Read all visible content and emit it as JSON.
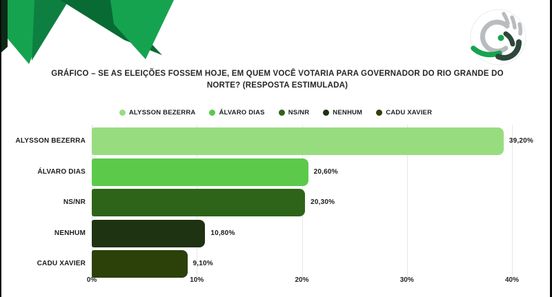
{
  "title": "GRÁFICO – SE AS ELEIÇÕES FOSSEM HOJE, EM QUEM VOCÊ VOTARIA PARA GOVERNADOR DO RIO GRANDE DO NORTE? (RESPOSTA ESTIMULADA)",
  "branding": {
    "logo_name": "research-institute-globe-logo",
    "deco_name": "green-ribbon-decoration"
  },
  "colors": {
    "background": "#ffffff",
    "frame_border": "#0a0a0a",
    "title_text": "#262626",
    "label_text": "#1c1c1c",
    "gridline": "#e7e7e7",
    "deco_bright_green": "#16a34f",
    "deco_mid_green": "#0d8041",
    "deco_dark_green": "#076b33",
    "deco_edge_dark": "#0c2c17",
    "logo_gray": "#b9bcbe",
    "logo_green": "#17a350",
    "logo_dark": "#2d473a"
  },
  "chart_data": {
    "type": "bar",
    "orientation": "horizontal",
    "title": "GRÁFICO – SE AS ELEIÇÕES FOSSEM HOJE, EM QUEM VOCÊ VOTARIA PARA GOVERNADOR DO RIO GRANDE DO NORTE? (RESPOSTA ESTIMULADA)",
    "categories": [
      "ALYSSON BEZERRA",
      "ÁLVARO DIAS",
      "NS/NR",
      "NENHUM",
      "CADU XAVIER"
    ],
    "values": [
      39.2,
      20.6,
      20.3,
      10.8,
      9.1
    ],
    "value_labels": [
      "39,20%",
      "20,60%",
      "20,30%",
      "10,80%",
      "9,10%"
    ],
    "bar_colors": [
      "#98dc80",
      "#5cc94b",
      "#2e6419",
      "#1d3311",
      "#2c4009"
    ],
    "legend": [
      "ALYSSON BEZERRA",
      "ÁLVARO DIAS",
      "NS/NR",
      "NENHUM",
      "CADU XAVIER"
    ],
    "legend_position": "top",
    "x_ticks": [
      "0%",
      "10%",
      "20%",
      "30%",
      "40%"
    ],
    "x_tick_values": [
      0,
      10,
      20,
      30,
      40
    ],
    "xlim": [
      0,
      40
    ],
    "grid": true,
    "xlabel": "",
    "ylabel": ""
  }
}
